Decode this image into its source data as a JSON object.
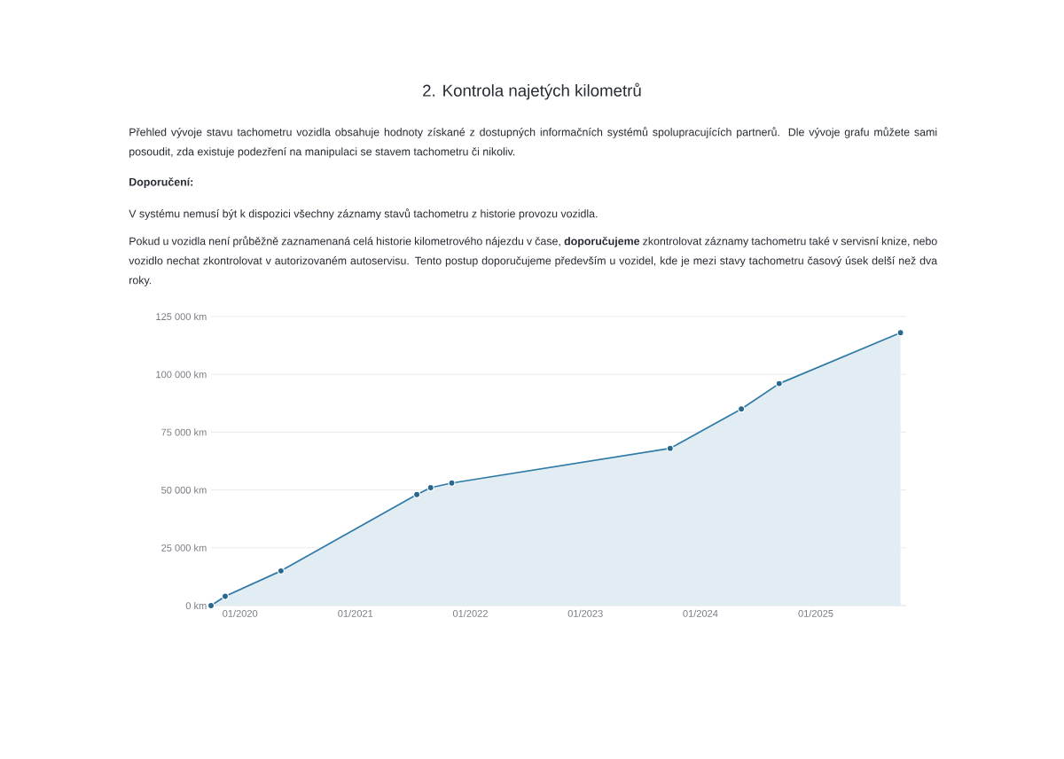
{
  "chart_data": {
    "type": "area",
    "title": "2. Kontrola najetých kilometrů",
    "subtitle": "Přehled vývoje stavu tachometru vozidla obsahuje hodnoty získané z dostupných informačních systémů spolupracujících partnerů. Dle vývoje grafu můžete sami posoudit, zda existuje podezření na manipulaci se stavem tachometru či nikoliv.",
    "annotations": [
      "Doporučení:",
      "V systému nemusí být k dispozici všechny záznamy stavů tachometru z historie provozu vozidla.",
      "Pokud u vozidla není průběžně zaznamenaná celá historie kilometrového nájezdu v čase, **doporučujeme** zkontrolovat záznamy tachometru také v servisní knize, nebo vozidlo nechat zkontrolovat v autorizovaném autoservisu. Tento postup doporučujeme především u vozidel, kde je mezi stavy tachometru časový úsek delší než dva roky."
    ],
    "x": [
      "2019-10-01",
      "2019-11-15",
      "2020-05-10",
      "2021-07-15",
      "2021-08-28",
      "2021-11-03",
      "2023-09-27",
      "2024-05-10",
      "2024-09-07",
      "2025-09-27"
    ],
    "values": [
      0,
      4000,
      15000,
      48000,
      51000,
      53000,
      68000,
      85000,
      96000,
      118000
    ],
    "color": "#2f7aa6",
    "marker": "circle",
    "line_style": "solid",
    "grid": "y",
    "xlim": [
      "2019-10-01",
      "2025-10-15"
    ],
    "ylim": [
      0,
      125000
    ],
    "xticks": [
      {
        "value": "2020-01",
        "label": "01/2020"
      },
      {
        "value": "2021-01",
        "label": "01/2021"
      },
      {
        "value": "2022-01",
        "label": "01/2022"
      },
      {
        "value": "2023-01",
        "label": "01/2023"
      },
      {
        "value": "2024-01",
        "label": "01/2024"
      },
      {
        "value": "2025-01",
        "label": "01/2025"
      }
    ],
    "yticks": [
      {
        "value": 0,
        "label": "0 km"
      },
      {
        "value": 25000,
        "label": "25 000 km"
      },
      {
        "value": 50000,
        "label": "50 000 km"
      },
      {
        "value": 75000,
        "label": "75 000 km"
      },
      {
        "value": 100000,
        "label": "100 000 km"
      },
      {
        "value": 125000,
        "label": "125 000 km"
      }
    ]
  }
}
